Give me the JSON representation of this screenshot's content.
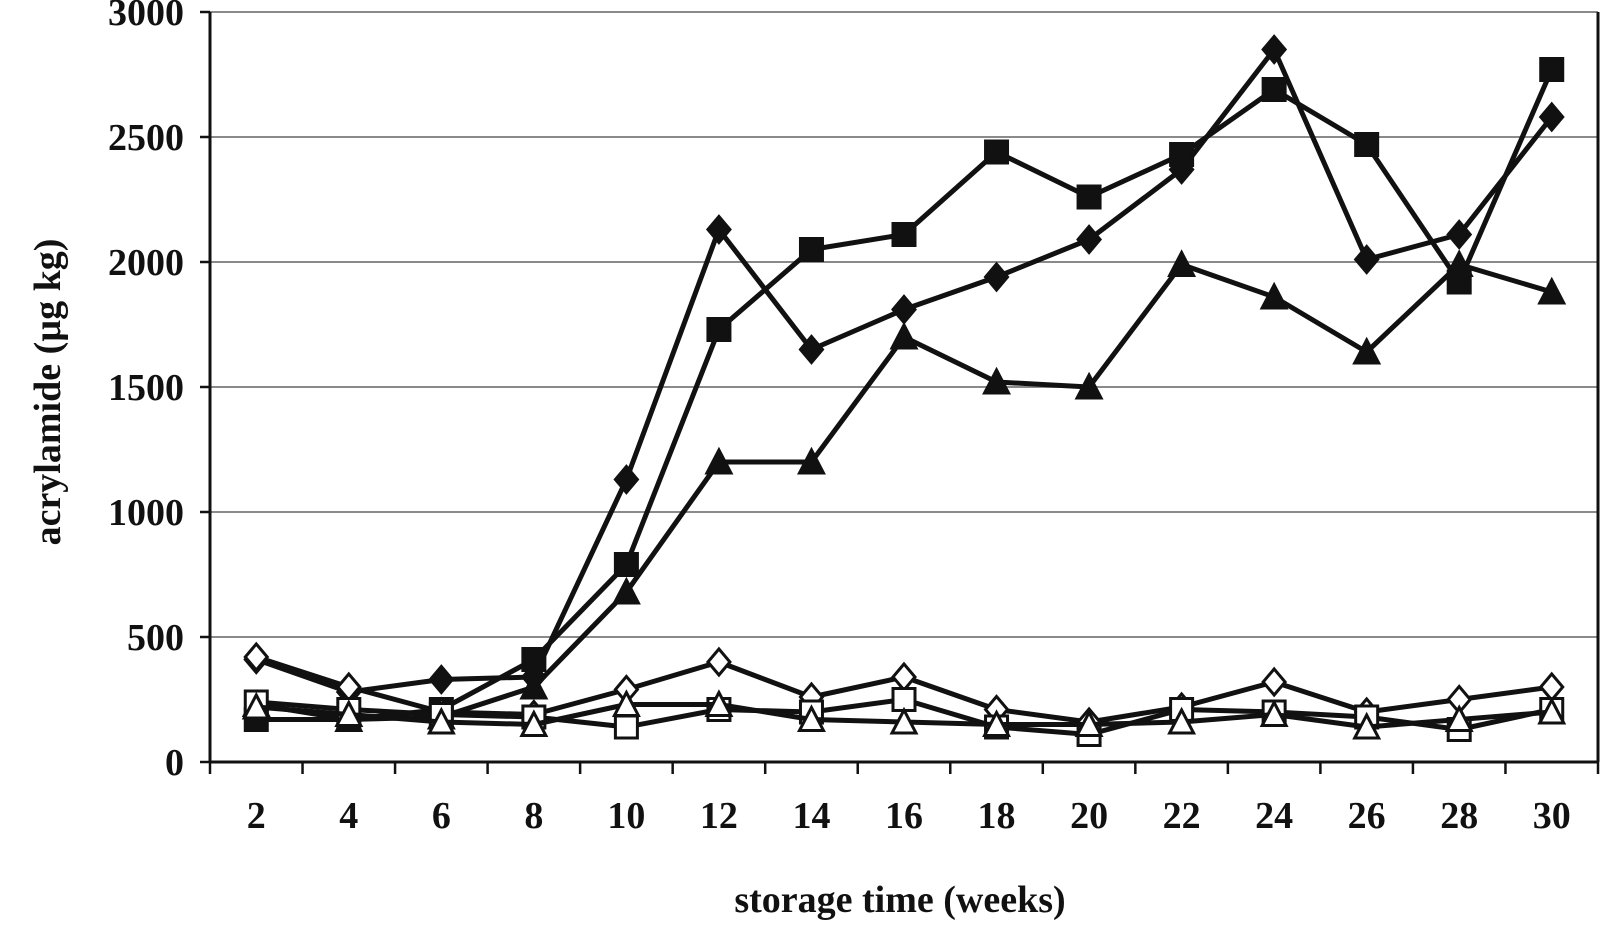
{
  "chart_data": {
    "type": "line",
    "title": "",
    "xlabel": "storage time (weeks)",
    "ylabel": "acrylamide (µg kg)",
    "x": [
      2,
      4,
      6,
      8,
      10,
      12,
      14,
      16,
      18,
      20,
      22,
      24,
      26,
      28,
      30
    ],
    "xlim": [
      1,
      31
    ],
    "ylim": [
      0,
      3000
    ],
    "yticks": [
      0,
      500,
      1000,
      1500,
      2000,
      2500,
      3000
    ],
    "grid": true,
    "legend": "none",
    "series": [
      {
        "marker": "diamond",
        "filled": true,
        "values": [
          410,
          280,
          330,
          340,
          1130,
          2130,
          1650,
          1810,
          1940,
          2090,
          2370,
          2850,
          2010,
          2110,
          2580
        ]
      },
      {
        "marker": "square",
        "filled": true,
        "values": [
          170,
          170,
          210,
          410,
          790,
          1730,
          2050,
          2110,
          2440,
          2260,
          2430,
          2690,
          2470,
          1920,
          2770
        ]
      },
      {
        "marker": "triangle",
        "filled": true,
        "values": [
          230,
          170,
          180,
          300,
          680,
          1200,
          1200,
          1700,
          1520,
          1500,
          1990,
          1860,
          1640,
          1990,
          1880
        ]
      },
      {
        "marker": "diamond",
        "filled": false,
        "values": [
          420,
          300,
          200,
          190,
          290,
          400,
          260,
          340,
          210,
          160,
          220,
          320,
          200,
          250,
          300
        ]
      },
      {
        "marker": "square",
        "filled": false,
        "values": [
          240,
          210,
          190,
          180,
          140,
          210,
          200,
          250,
          140,
          110,
          210,
          200,
          180,
          130,
          210
        ]
      },
      {
        "marker": "triangle",
        "filled": false,
        "values": [
          220,
          190,
          160,
          150,
          230,
          230,
          170,
          160,
          150,
          150,
          160,
          190,
          140,
          170,
          200
        ]
      }
    ]
  }
}
